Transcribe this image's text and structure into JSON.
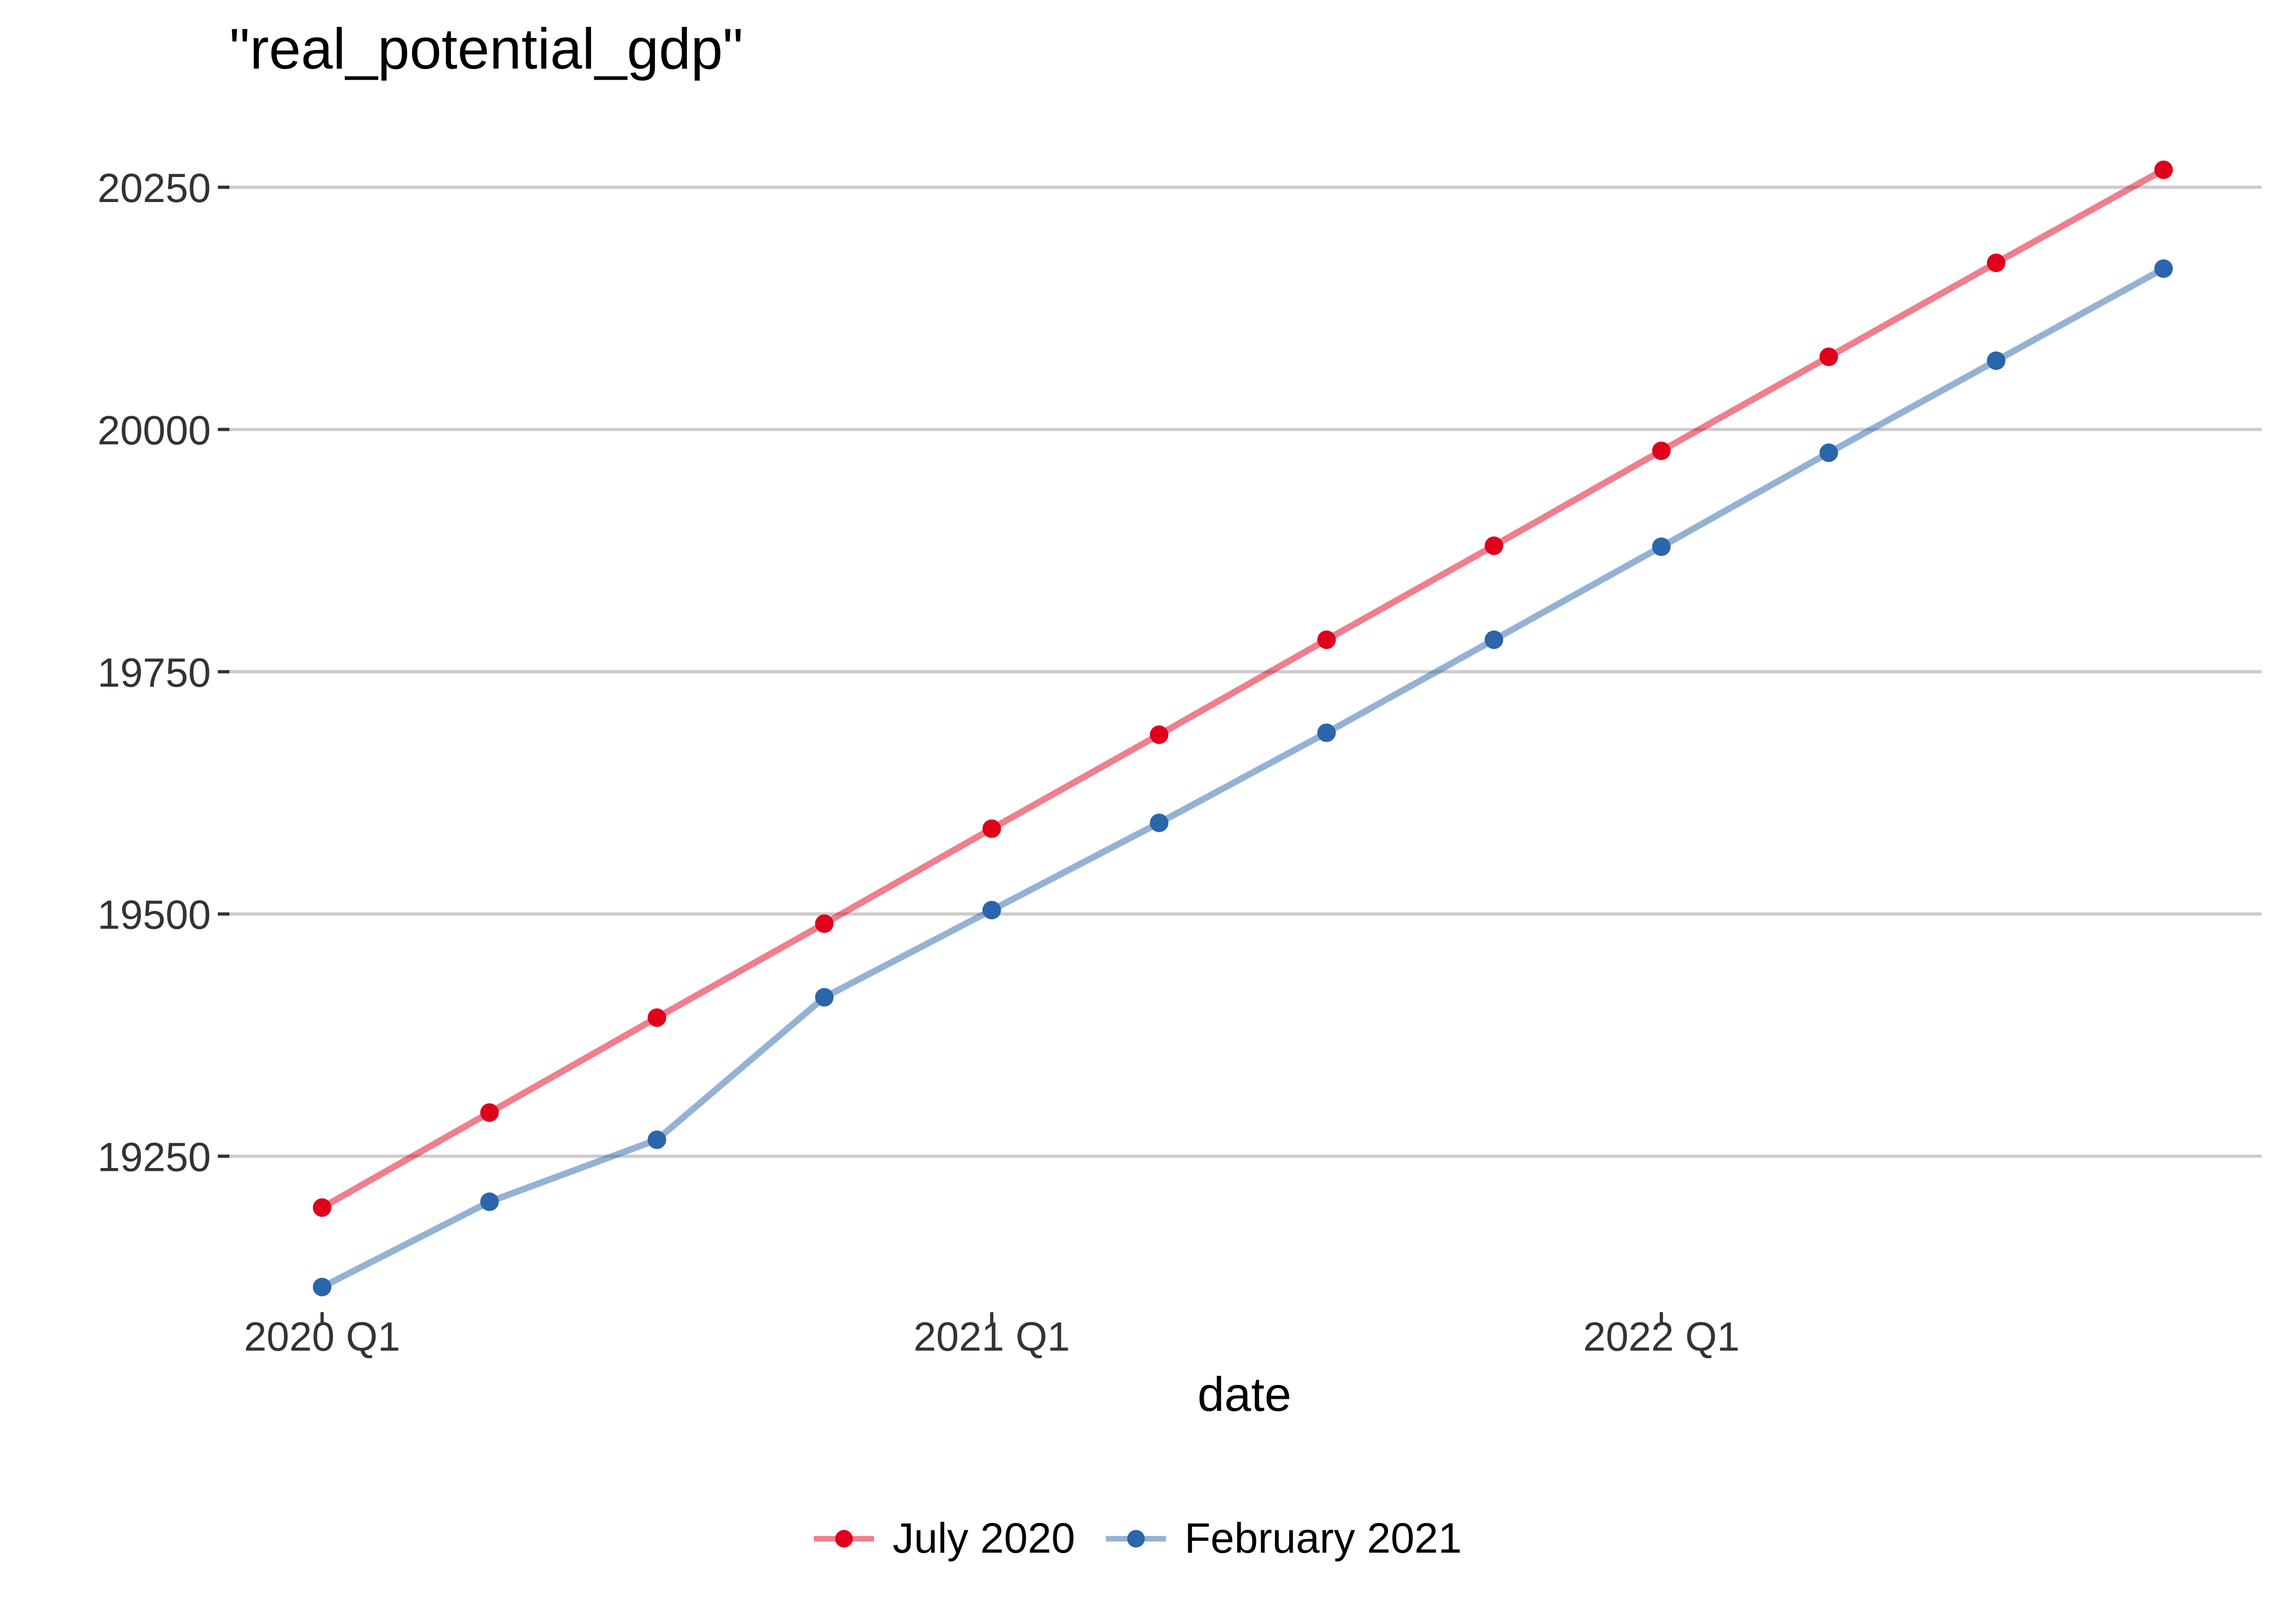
{
  "chart_data": {
    "type": "line",
    "title": "\"real_potential_gdp\"",
    "xlabel": "date",
    "ylabel": "",
    "x": [
      "2020 Q1",
      "2020 Q2",
      "2020 Q3",
      "2020 Q4",
      "2021 Q1",
      "2021 Q2",
      "2021 Q3",
      "2021 Q4",
      "2022 Q1",
      "2022 Q2",
      "2022 Q3",
      "2022 Q4"
    ],
    "x_ticks": [
      "2020 Q1",
      "2021 Q1",
      "2022 Q1"
    ],
    "y_ticks": [
      19250,
      19500,
      19750,
      20000,
      20250
    ],
    "ylim": [
      19090,
      20295
    ],
    "grid": "horizontal major",
    "legend_position": "bottom",
    "series": [
      {
        "name": "July 2020",
        "color": "#e0001b",
        "values": [
          19197,
          19295,
          19393,
          19490,
          19588,
          19685,
          19783,
          19880,
          19978,
          20075,
          20172,
          20268
        ]
      },
      {
        "name": "February 2021",
        "color": "#2b65ac",
        "values": [
          19115,
          19203,
          19267,
          19414,
          19504,
          19594,
          19687,
          19783,
          19879,
          19976,
          20071,
          20166
        ]
      }
    ]
  }
}
